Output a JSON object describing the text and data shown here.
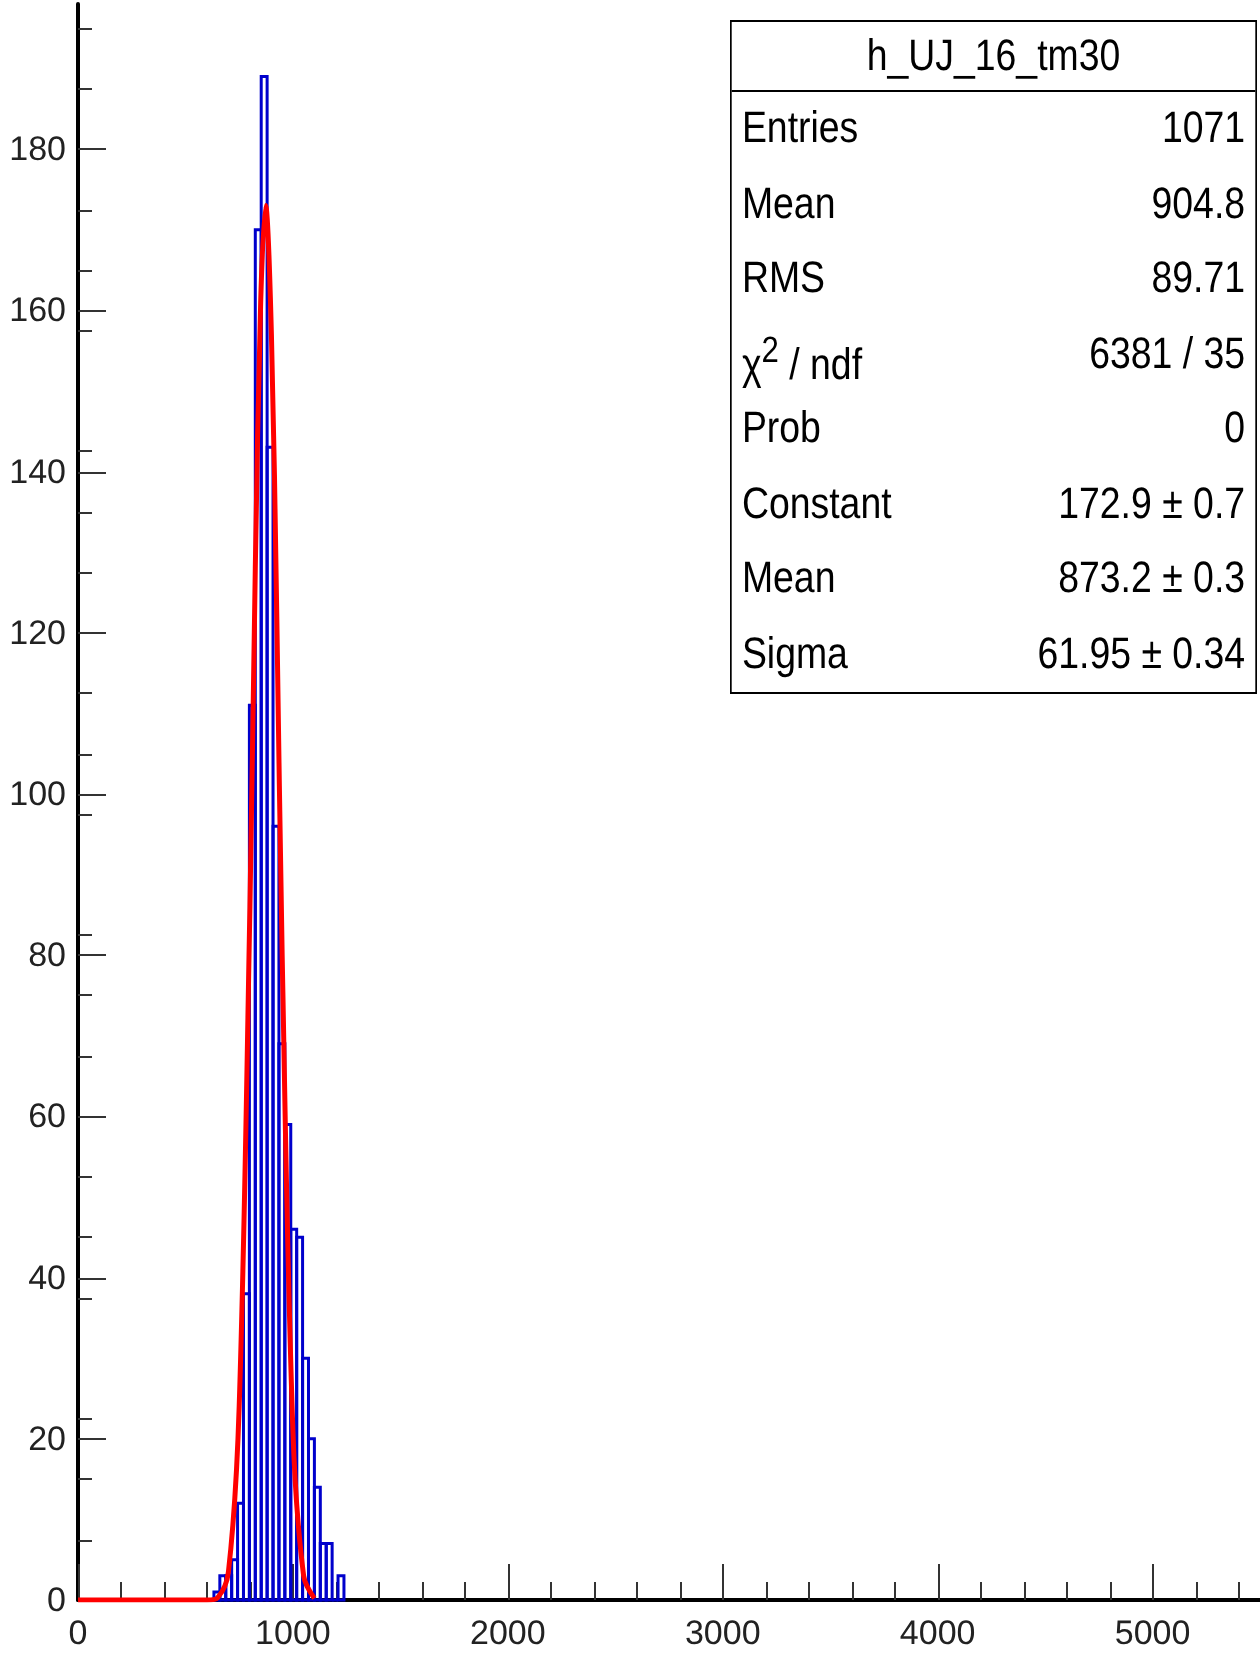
{
  "chart_data": {
    "type": "histogram",
    "title": "h_UJ_16_tm30",
    "annotations": [
      "Entries",
      "1071",
      "Mean",
      "904.8",
      "RMS",
      "89.71",
      "χ$^{2}$ / ndf",
      "6381 / 35",
      "Prob",
      "0",
      "Constant",
      "172.9 ± 0.7",
      "Mean",
      "873.2 ± 0.3",
      "Sigma",
      "61.95 ± 0.34"
    ],
    "series": [
      {
        "color": "#0000cc",
        "bins": [
          632.5,
          660,
          687.5,
          715,
          742.5,
          770,
          797.5,
          825,
          852.5,
          880,
          907.5,
          935,
          962.5,
          990,
          1017.5,
          1045,
          1072.5,
          1100,
          1127.5,
          1155,
          1182.5,
          1210,
          1237.5
        ],
        "values": [
          1,
          3,
          3,
          5,
          12,
          38,
          111,
          170,
          189,
          143,
          96,
          69,
          59,
          46,
          45,
          30,
          20,
          14,
          7,
          7,
          0,
          3
        ]
      },
      {
        "type": "line",
        "color": "#ff0000",
        "x": [
          0,
          600,
          650,
          700,
          750,
          800,
          825,
          850,
          873,
          900,
          925,
          950,
          1000,
          1050,
          1100
        ],
        "values": [
          0,
          0,
          0.3,
          3.5,
          24,
          86,
          128,
          161,
          173,
          157,
          122,
          80,
          21,
          3,
          0.2
        ]
      }
    ],
    "xlim": [
      0,
      5500
    ],
    "xticks": [
      0,
      1000,
      2000,
      3000,
      4000,
      5000
    ],
    "ylim": [
      0,
      198
    ],
    "yticks": [
      0,
      20,
      40,
      60,
      80,
      100,
      120,
      140,
      160,
      180
    ],
    "grid": false
  }
}
